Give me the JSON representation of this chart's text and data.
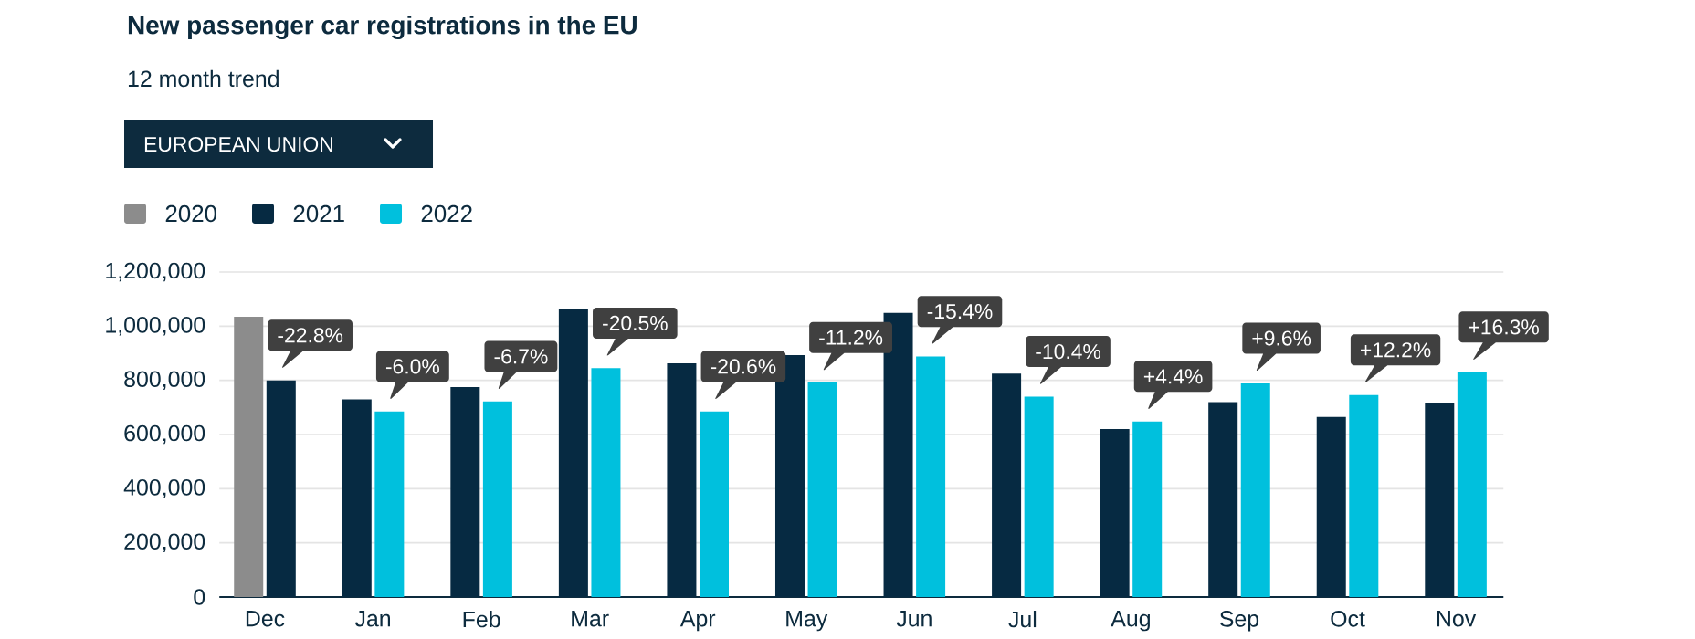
{
  "chart_data": {
    "type": "bar",
    "title": "New passenger car registrations in the EU",
    "subtitle": "12 month trend",
    "categories": [
      "Dec",
      "Jan",
      "Feb",
      "Mar",
      "Apr",
      "May",
      "Jun",
      "Jul",
      "Aug",
      "Sep",
      "Oct",
      "Nov"
    ],
    "series": [
      {
        "name": "2020",
        "color": "#8c8c8c",
        "values": [
          1035000,
          null,
          null,
          null,
          null,
          null,
          null,
          null,
          null,
          null,
          null,
          null
        ]
      },
      {
        "name": "2021",
        "color": "#062a42",
        "values": [
          800000,
          730000,
          775000,
          1063000,
          863000,
          893000,
          1049000,
          825000,
          620000,
          720000,
          665000,
          715000
        ]
      },
      {
        "name": "2022",
        "color": "#00c0dd",
        "values": [
          null,
          685000,
          722000,
          845000,
          685000,
          792000,
          888000,
          740000,
          648000,
          789000,
          746000,
          830000
        ]
      }
    ],
    "ylim": [
      0,
      1200000
    ],
    "yticks": [
      0,
      {
        "value": 200000,
        "label": "200,000"
      },
      {
        "value": 400000,
        "label": "400,000"
      },
      {
        "value": 600000,
        "label": "600,000"
      },
      {
        "value": 800000,
        "label": "800,000"
      },
      {
        "value": 1000000,
        "label": "1,000,000"
      },
      {
        "value": 1200000,
        "label": "1,200,000"
      }
    ],
    "grid": "y",
    "legend": "top left",
    "annotations": [
      "EUROPEAN UNION",
      {
        "text": "-22.8%",
        "x": "Dec",
        "y": 800000
      },
      {
        "text": "-6.0%",
        "x": "Jan",
        "y": 685000
      },
      {
        "text": "-6.7%",
        "x": "Feb",
        "y": 722000
      },
      {
        "text": "-20.5%",
        "x": "Mar",
        "y": 845000
      },
      {
        "text": "-20.6%",
        "x": "Apr",
        "y": 685000
      },
      {
        "text": "-11.2%",
        "x": "May",
        "y": 792000
      },
      {
        "text": "-15.4%",
        "x": "Jun",
        "y": 888000
      },
      {
        "text": "-10.4%",
        "x": "Jul",
        "y": 740000
      },
      {
        "text": "+4.4%",
        "x": "Aug",
        "y": 648000
      },
      {
        "text": "+9.6%",
        "x": "Sep",
        "y": 789000
      },
      {
        "text": "+12.2%",
        "x": "Oct",
        "y": 746000
      },
      {
        "text": "+16.3%",
        "x": "Nov",
        "y": 830000
      }
    ]
  }
}
